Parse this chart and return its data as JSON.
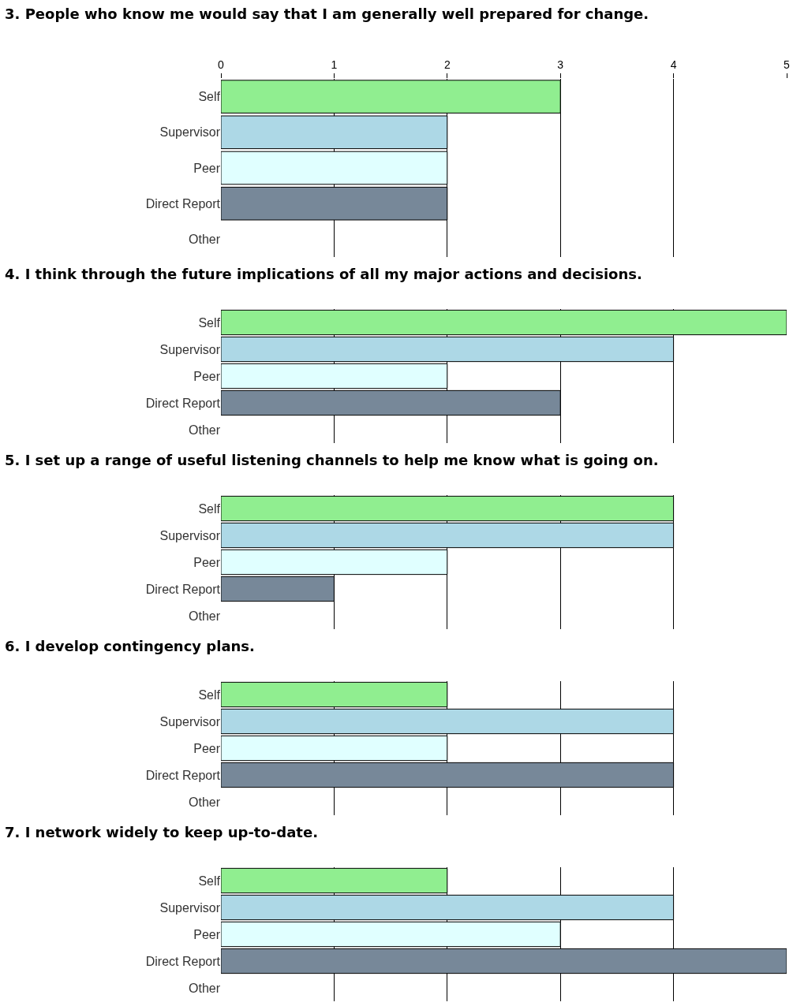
{
  "chart_data": [
    {
      "type": "bar",
      "orientation": "horizontal",
      "title": "3. People who know me would say that I am generally well prepared for change.",
      "categories": [
        "Self",
        "Supervisor",
        "Peer",
        "Direct Report",
        "Other"
      ],
      "values": [
        3,
        2,
        2,
        2,
        0
      ],
      "colors": [
        "#90ee90",
        "#add8e6",
        "#e0ffff",
        "#778899",
        "#778899"
      ],
      "xlim": [
        0,
        5
      ],
      "xticks": [
        0,
        1,
        2,
        3,
        4,
        5
      ],
      "grid": "x"
    },
    {
      "type": "bar",
      "orientation": "horizontal",
      "title": "4. I think through the future implications of all my major actions and decisions.",
      "categories": [
        "Self",
        "Supervisor",
        "Peer",
        "Direct Report",
        "Other"
      ],
      "values": [
        5,
        4,
        2,
        3,
        0
      ],
      "colors": [
        "#90ee90",
        "#add8e6",
        "#e0ffff",
        "#778899",
        "#778899"
      ],
      "xlim": [
        0,
        5
      ],
      "xticks": [
        0,
        1,
        2,
        3,
        4,
        5
      ],
      "grid": "x",
      "tick_labels": "y"
    },
    {
      "type": "bar",
      "orientation": "horizontal",
      "title": "5. I set up a range of useful listening channels to help me know what is going on.",
      "categories": [
        "Self",
        "Supervisor",
        "Peer",
        "Direct Report",
        "Other"
      ],
      "values": [
        4,
        4,
        2,
        1,
        0
      ],
      "colors": [
        "#90ee90",
        "#add8e6",
        "#e0ffff",
        "#778899",
        "#778899"
      ],
      "xlim": [
        0,
        5
      ],
      "xticks": [
        0,
        1,
        2,
        3,
        4,
        5
      ],
      "grid": "x",
      "tick_labels": "y"
    },
    {
      "type": "bar",
      "orientation": "horizontal",
      "title": "6. I develop contingency plans.",
      "categories": [
        "Self",
        "Supervisor",
        "Peer",
        "Direct Report",
        "Other"
      ],
      "values": [
        2,
        4,
        2,
        4,
        0
      ],
      "colors": [
        "#90ee90",
        "#add8e6",
        "#e0ffff",
        "#778899",
        "#778899"
      ],
      "xlim": [
        0,
        5
      ],
      "xticks": [
        0,
        1,
        2,
        3,
        4,
        5
      ],
      "grid": "x",
      "tick_labels": "y"
    },
    {
      "type": "bar",
      "orientation": "horizontal",
      "title": "7. I network widely to keep up-to-date.",
      "categories": [
        "Self",
        "Supervisor",
        "Peer",
        "Direct Report",
        "Other"
      ],
      "values": [
        2,
        4,
        3,
        5,
        0
      ],
      "colors": [
        "#90ee90",
        "#add8e6",
        "#e0ffff",
        "#778899",
        "#778899"
      ],
      "xlim": [
        0,
        5
      ],
      "xticks": [
        0,
        1,
        2,
        3,
        4,
        5
      ],
      "grid": "x",
      "tick_labels": "y"
    }
  ]
}
